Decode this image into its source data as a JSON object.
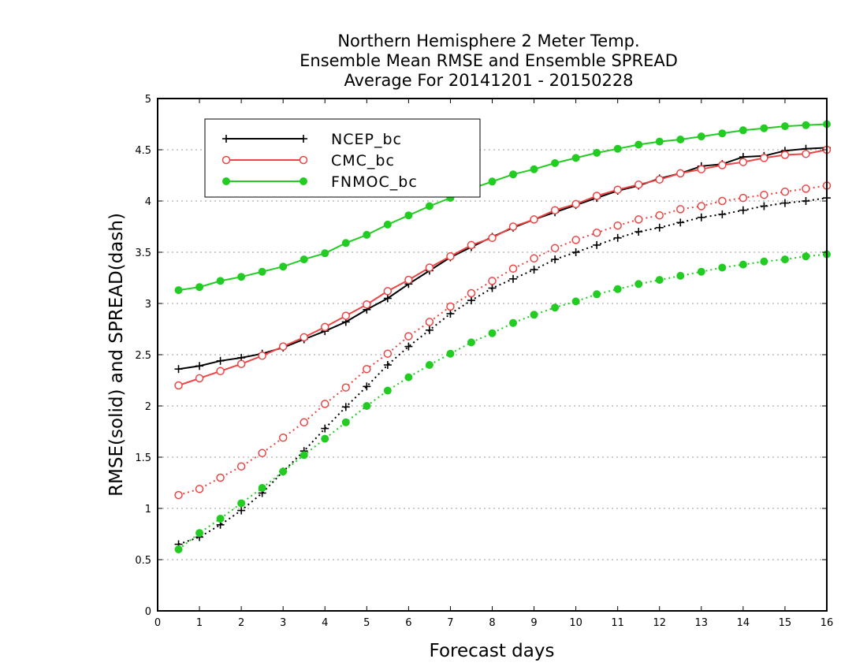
{
  "chart_data": {
    "type": "line",
    "title": [
      "Northern Hemisphere 2 Meter Temp.",
      "Ensemble Mean RMSE and Ensemble SPREAD",
      "Average For 20141201 - 20150228"
    ],
    "xlabel": "Forecast days",
    "ylabel": "RMSE(solid) and SPREAD(dash)",
    "xlim": [
      0,
      16
    ],
    "ylim": [
      0,
      5
    ],
    "x_ticks": [
      "0",
      "1",
      "2",
      "3",
      "4",
      "5",
      "6",
      "7",
      "8",
      "9",
      "10",
      "11",
      "12",
      "13",
      "14",
      "15",
      "16"
    ],
    "y_ticks": [
      "0",
      "0.5",
      "1",
      "1.5",
      "2",
      "2.5",
      "3",
      "3.5",
      "4",
      "4.5",
      "5"
    ],
    "grid": "horizontal dotted",
    "legend_position": "top-left",
    "x": [
      0.5,
      1,
      1.5,
      2,
      2.5,
      3,
      3.5,
      4,
      4.5,
      5,
      5.5,
      6,
      6.5,
      7,
      7.5,
      8,
      8.5,
      9,
      9.5,
      10,
      10.5,
      11,
      11.5,
      12,
      12.5,
      13,
      13.5,
      14,
      14.5,
      15,
      15.5,
      16
    ],
    "series": [
      {
        "name": "NCEP_bc",
        "color": "#000000",
        "marker": "plus",
        "rmse": [
          2.36,
          2.39,
          2.44,
          2.47,
          2.51,
          2.57,
          2.65,
          2.73,
          2.82,
          2.94,
          3.05,
          3.19,
          3.32,
          3.45,
          3.55,
          3.65,
          3.74,
          3.82,
          3.89,
          3.96,
          4.03,
          4.1,
          4.15,
          4.22,
          4.27,
          4.34,
          4.36,
          4.43,
          4.44,
          4.49,
          4.51,
          4.52
        ],
        "spread": [
          0.65,
          0.72,
          0.84,
          0.98,
          1.15,
          1.36,
          1.56,
          1.78,
          1.99,
          2.19,
          2.4,
          2.58,
          2.74,
          2.9,
          3.03,
          3.15,
          3.24,
          3.33,
          3.43,
          3.5,
          3.57,
          3.64,
          3.7,
          3.74,
          3.79,
          3.84,
          3.87,
          3.91,
          3.95,
          3.98,
          4.0,
          4.03
        ]
      },
      {
        "name": "CMC_bc",
        "color": "#ee4444",
        "marker": "open-circle",
        "rmse": [
          2.2,
          2.27,
          2.34,
          2.41,
          2.49,
          2.58,
          2.67,
          2.77,
          2.88,
          2.99,
          3.12,
          3.23,
          3.35,
          3.46,
          3.57,
          3.64,
          3.75,
          3.82,
          3.91,
          3.97,
          4.05,
          4.11,
          4.16,
          4.21,
          4.27,
          4.31,
          4.35,
          4.38,
          4.42,
          4.45,
          4.46,
          4.5
        ],
        "spread": [
          1.13,
          1.19,
          1.3,
          1.41,
          1.54,
          1.69,
          1.84,
          2.02,
          2.18,
          2.36,
          2.51,
          2.68,
          2.82,
          2.97,
          3.1,
          3.22,
          3.34,
          3.44,
          3.54,
          3.62,
          3.69,
          3.76,
          3.82,
          3.86,
          3.92,
          3.95,
          4.0,
          4.03,
          4.06,
          4.09,
          4.12,
          4.15
        ]
      },
      {
        "name": "FNMOC_bc",
        "color": "#22cc22",
        "marker": "filled-circle",
        "rmse": [
          3.13,
          3.16,
          3.22,
          3.26,
          3.31,
          3.36,
          3.43,
          3.49,
          3.59,
          3.67,
          3.77,
          3.86,
          3.95,
          4.03,
          4.12,
          4.19,
          4.26,
          4.31,
          4.37,
          4.42,
          4.47,
          4.51,
          4.55,
          4.58,
          4.6,
          4.63,
          4.66,
          4.69,
          4.71,
          4.73,
          4.74,
          4.75
        ],
        "spread": [
          0.6,
          0.76,
          0.9,
          1.05,
          1.2,
          1.36,
          1.52,
          1.68,
          1.84,
          2.0,
          2.15,
          2.28,
          2.4,
          2.51,
          2.62,
          2.71,
          2.81,
          2.89,
          2.96,
          3.02,
          3.09,
          3.14,
          3.19,
          3.23,
          3.27,
          3.31,
          3.35,
          3.38,
          3.41,
          3.43,
          3.46,
          3.48
        ]
      }
    ]
  }
}
